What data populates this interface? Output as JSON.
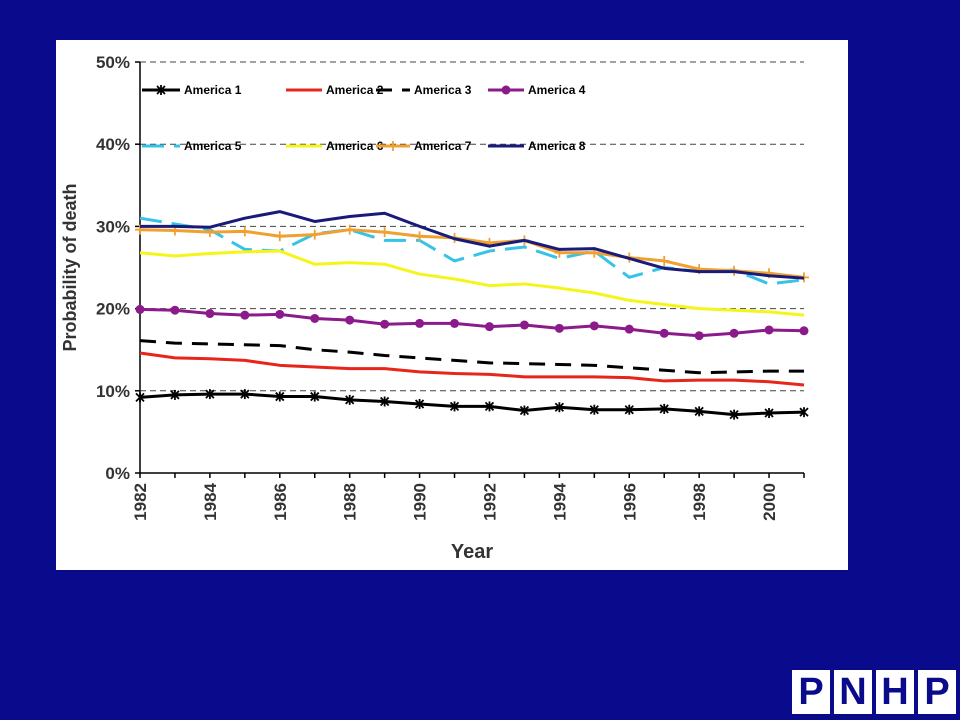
{
  "chart_data": {
    "type": "line",
    "xlabel": "Year",
    "ylabel": "Probability of death",
    "x": [
      1982,
      1983,
      1984,
      1985,
      1986,
      1987,
      1988,
      1989,
      1990,
      1991,
      1992,
      1993,
      1994,
      1995,
      1996,
      1997,
      1998,
      1999,
      2000,
      2001
    ],
    "x_tick_labels": [
      "1982",
      "1984",
      "1986",
      "1988",
      "1990",
      "1992",
      "1994",
      "1996",
      "1998",
      "2000"
    ],
    "y_ticks": [
      0,
      10,
      20,
      30,
      40,
      50
    ],
    "y_tick_labels": [
      "0%",
      "10%",
      "20%",
      "30%",
      "40%",
      "50%"
    ],
    "ylim": [
      0,
      50
    ],
    "grid": "horizontal-dashed",
    "legend_placement": "top-left",
    "series": [
      {
        "name": "America 1",
        "color": "#000000",
        "style": "star",
        "values": [
          9.2,
          9.5,
          9.6,
          9.6,
          9.3,
          9.3,
          8.9,
          8.7,
          8.4,
          8.1,
          8.1,
          7.6,
          8.0,
          7.7,
          7.7,
          7.8,
          7.5,
          7.1,
          7.3,
          7.4
        ]
      },
      {
        "name": "America 2",
        "color": "#e8251a",
        "style": "solid",
        "values": [
          14.6,
          14.0,
          13.9,
          13.7,
          13.1,
          12.9,
          12.7,
          12.7,
          12.3,
          12.1,
          12.0,
          11.7,
          11.7,
          11.7,
          11.6,
          11.2,
          11.3,
          11.3,
          11.1,
          10.7
        ]
      },
      {
        "name": "America 3",
        "color": "#000000",
        "style": "dash",
        "values": [
          16.1,
          15.8,
          15.7,
          15.6,
          15.5,
          15.0,
          14.7,
          14.3,
          14.0,
          13.7,
          13.4,
          13.3,
          13.2,
          13.1,
          12.8,
          12.5,
          12.2,
          12.3,
          12.4,
          12.4
        ]
      },
      {
        "name": "America 4",
        "color": "#8b1a8b",
        "style": "dot",
        "values": [
          19.9,
          19.8,
          19.4,
          19.2,
          19.3,
          18.8,
          18.6,
          18.1,
          18.2,
          18.2,
          17.8,
          18.0,
          17.6,
          17.9,
          17.5,
          17.0,
          16.7,
          17.0,
          17.4,
          17.3
        ]
      },
      {
        "name": "America 5",
        "color": "#36c3e6",
        "style": "dash",
        "values": [
          31.0,
          30.3,
          29.6,
          27.2,
          27.0,
          29.1,
          29.6,
          28.3,
          28.3,
          25.8,
          27.0,
          27.5,
          26.1,
          27.0,
          23.8,
          25.0,
          24.5,
          24.7,
          23.0,
          23.5
        ]
      },
      {
        "name": "America 6",
        "color": "#f5f51c",
        "style": "solid",
        "values": [
          26.8,
          26.4,
          26.7,
          26.9,
          27.0,
          25.4,
          25.6,
          25.4,
          24.2,
          23.6,
          22.8,
          23.0,
          22.5,
          21.9,
          21.0,
          20.5,
          20.0,
          19.8,
          19.6,
          19.2
        ]
      },
      {
        "name": "America 7",
        "color": "#f0a030",
        "style": "plus",
        "values": [
          29.6,
          29.5,
          29.3,
          29.4,
          28.8,
          29.0,
          29.6,
          29.3,
          28.8,
          28.6,
          28.0,
          28.3,
          26.8,
          26.8,
          26.2,
          25.8,
          24.8,
          24.6,
          24.3,
          23.8
        ]
      },
      {
        "name": "America 8",
        "color": "#1a1a7a",
        "style": "solid",
        "values": [
          30.0,
          30.0,
          29.9,
          31.0,
          31.8,
          30.6,
          31.2,
          31.6,
          30.0,
          28.5,
          27.6,
          28.3,
          27.2,
          27.3,
          26.1,
          24.9,
          24.5,
          24.5,
          24.0,
          23.7
        ]
      }
    ]
  },
  "logo": {
    "letters": [
      "P",
      "N",
      "H",
      "P"
    ]
  }
}
